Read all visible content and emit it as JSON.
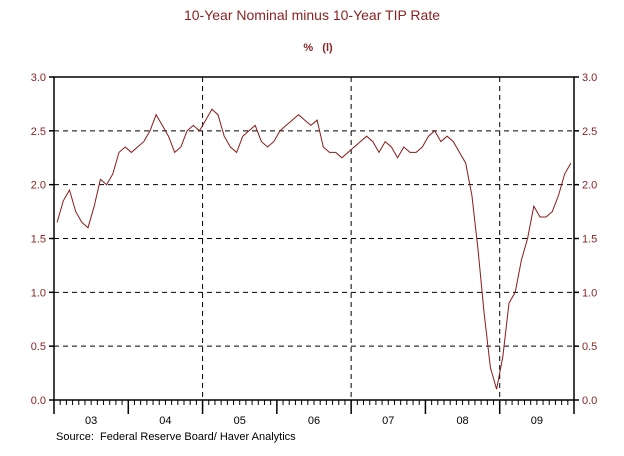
{
  "chart_data": {
    "type": "line",
    "title": "10-Year Nominal minus 10-Year TIP Rate",
    "subtitle": "%   (l)",
    "source": "Source:  Federal Reserve Board/ Haver Analytics",
    "xlabel": "",
    "ylabel": "%",
    "xlim": [
      2003.0,
      2010.0
    ],
    "ylim": [
      0.0,
      3.0
    ],
    "y_ticks": [
      "0.0",
      "0.5",
      "1.0",
      "1.5",
      "2.0",
      "2.5",
      "3.0"
    ],
    "x_tick_labels": [
      "03",
      "04",
      "05",
      "06",
      "07",
      "08",
      "09"
    ],
    "grid": "dashed horizontal at 0.5 intervals; dashed vertical at 2005, 2007, 2009",
    "line_color": "#8b1a1a",
    "series": [
      {
        "name": "10-Year Nominal minus 10-Year TIP Rate",
        "frequency": "monthly (approx.)",
        "start": 2003.0,
        "values": [
          1.65,
          1.85,
          1.95,
          1.75,
          1.65,
          1.6,
          1.8,
          2.05,
          2.0,
          2.1,
          2.3,
          2.35,
          2.3,
          2.35,
          2.4,
          2.5,
          2.65,
          2.55,
          2.45,
          2.3,
          2.35,
          2.5,
          2.55,
          2.5,
          2.6,
          2.7,
          2.65,
          2.45,
          2.35,
          2.3,
          2.45,
          2.5,
          2.55,
          2.4,
          2.35,
          2.4,
          2.5,
          2.55,
          2.6,
          2.65,
          2.6,
          2.55,
          2.6,
          2.35,
          2.3,
          2.3,
          2.25,
          2.3,
          2.35,
          2.4,
          2.45,
          2.4,
          2.3,
          2.4,
          2.35,
          2.25,
          2.35,
          2.3,
          2.3,
          2.35,
          2.45,
          2.5,
          2.4,
          2.45,
          2.4,
          2.3,
          2.2,
          1.9,
          1.4,
          0.8,
          0.3,
          0.1,
          0.4,
          0.9,
          1.0,
          1.3,
          1.5,
          1.8,
          1.7,
          1.7,
          1.75,
          1.9,
          2.1,
          2.2
        ]
      }
    ]
  }
}
